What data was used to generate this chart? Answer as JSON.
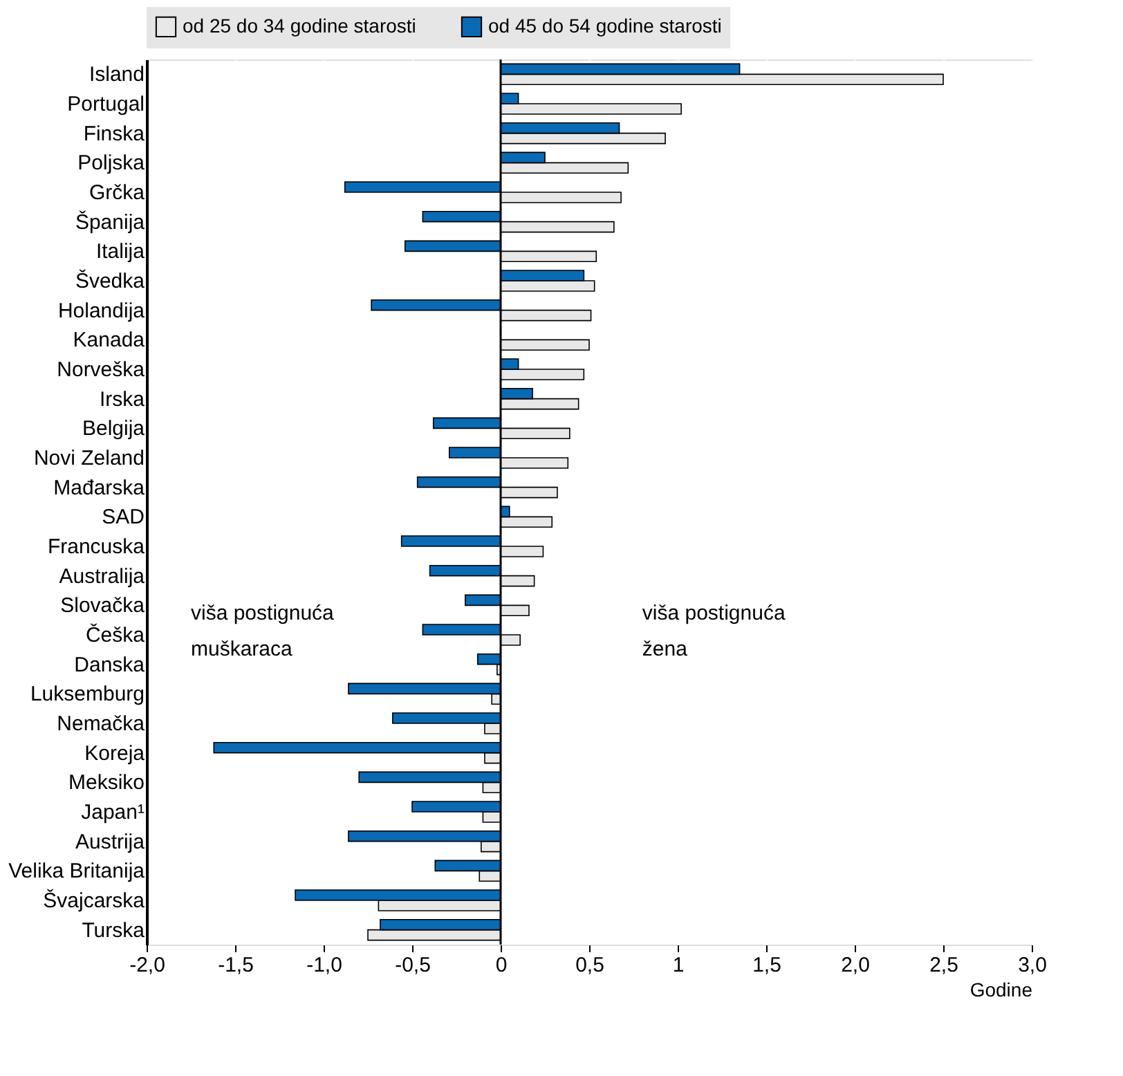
{
  "chart_data": {
    "type": "bar",
    "orientation": "horizontal",
    "xlabel": "Godine",
    "categories": [
      "Island",
      "Portugal",
      "Finska",
      "Poljska",
      "Grčka",
      "Španija",
      "Italija",
      "Švedka",
      "Holandija",
      "Kanada",
      "Norveška",
      "Irska",
      "Belgija",
      "Novi Zeland",
      "Mađarska",
      "SAD",
      "Francuska",
      "Australija",
      "Slovačka",
      "Češka",
      "Danska",
      "Luksemburg",
      "Nemačka",
      "Koreja",
      "Meksiko",
      "Japan¹",
      "Austrija",
      "Velika Britanija",
      "Švajcarska",
      "Turska"
    ],
    "series": [
      {
        "name": "od 25 do 34 godine starosti",
        "color": "#e8e8e8",
        "values": [
          2.5,
          1.02,
          0.93,
          0.72,
          0.68,
          0.64,
          0.54,
          0.53,
          0.51,
          0.5,
          0.47,
          0.44,
          0.39,
          0.38,
          0.32,
          0.29,
          0.24,
          0.19,
          0.16,
          0.11,
          -0.02,
          -0.05,
          -0.09,
          -0.09,
          -0.1,
          -0.1,
          -0.11,
          -0.12,
          -0.69,
          -0.75
        ]
      },
      {
        "name": "od 45 do 54 godine starosti",
        "color": "#0a6ab4",
        "values": [
          1.35,
          0.1,
          0.67,
          0.25,
          -0.88,
          -0.44,
          -0.54,
          0.47,
          -0.73,
          null,
          0.1,
          0.18,
          -0.38,
          -0.29,
          -0.47,
          0.05,
          -0.56,
          -0.4,
          -0.2,
          -0.44,
          -0.13,
          -0.86,
          -0.61,
          -1.62,
          -0.8,
          -0.5,
          -0.86,
          -0.37,
          -1.16,
          -0.68
        ]
      }
    ],
    "xlim": [
      -2,
      3
    ],
    "xticks": [
      {
        "value": -2,
        "label": "-2,0"
      },
      {
        "value": -1.5,
        "label": "-1,5"
      },
      {
        "value": -1,
        "label": "-1,0"
      },
      {
        "value": -0.5,
        "label": "-0,5"
      },
      0,
      {
        "value": 0.5,
        "label": "0,5"
      },
      1,
      {
        "value": 1.5,
        "label": "1,5"
      },
      {
        "value": 2,
        "label": "2,0"
      },
      {
        "value": 2.5,
        "label": "2,5"
      },
      {
        "value": 3,
        "label": "3,0"
      }
    ],
    "grid": "x",
    "legend": "top",
    "annotations": [
      "viša postignuća\nmuškaraca",
      "viša postignuća\nžena"
    ]
  }
}
